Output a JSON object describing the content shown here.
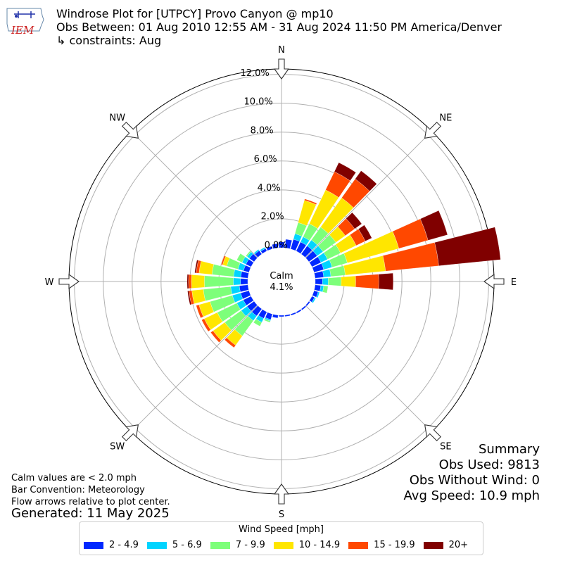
{
  "header": {
    "title": "Windrose Plot for [UTPCY] Provo Canyon @ mp10",
    "subtitle": "Obs Between: 01 Aug 2010 12:55 AM - 31 Aug 2024 11:50 PM America/Denver",
    "constraints": "↳ constraints: Aug",
    "logo_text": "IEM"
  },
  "summary": {
    "heading": "Summary",
    "obs_used": "Obs Used: 9813",
    "obs_without_wind": "Obs Without Wind: 0",
    "avg_speed": "Avg Speed: 10.9 mph"
  },
  "notes": {
    "calm_note": "Calm values are < 2.0 mph",
    "bar_convention": "Bar Convention: Meteorology",
    "flow_arrows": "Flow arrows relative to plot center.",
    "generated": "Generated: 11 May 2025"
  },
  "legend": {
    "title": "Wind Speed [mph]",
    "items": [
      {
        "label": "2 - 4.9",
        "color": "#0028ff"
      },
      {
        "label": "5 - 6.9",
        "color": "#00d4ff"
      },
      {
        "label": "7 - 9.9",
        "color": "#7dff7a"
      },
      {
        "label": "10 - 14.9",
        "color": "#ffe600"
      },
      {
        "label": "15 - 19.9",
        "color": "#ff4800"
      },
      {
        "label": "20+",
        "color": "#800000"
      }
    ]
  },
  "chart_data": {
    "type": "windrose",
    "calm_label": "Calm",
    "calm_value": "4.1%",
    "radial_ticks": [
      "0.0%",
      "2.0%",
      "4.0%",
      "6.0%",
      "8.0%",
      "10.0%",
      "12.0%"
    ],
    "radial_range": [
      0,
      12
    ],
    "direction_labels": [
      "N",
      "NE",
      "E",
      "SE",
      "S",
      "SW",
      "W",
      "NW"
    ],
    "sectors": [
      {
        "dir": 0,
        "values": [
          0.4,
          0.0,
          0.0,
          0.0,
          0.0,
          0.0
        ]
      },
      {
        "dir": 10,
        "values": [
          0.6,
          0.0,
          0.0,
          0.0,
          0.0,
          0.0
        ]
      },
      {
        "dir": 20,
        "values": [
          0.7,
          0.4,
          0.8,
          1.6,
          0.1,
          0.0
        ]
      },
      {
        "dir": 30,
        "values": [
          0.7,
          0.4,
          1.0,
          2.6,
          1.4,
          0.7
        ]
      },
      {
        "dir": 40,
        "values": [
          0.7,
          0.5,
          1.1,
          2.5,
          1.6,
          0.7
        ]
      },
      {
        "dir": 50,
        "values": [
          0.7,
          0.5,
          1.1,
          0.8,
          0.8,
          0.6
        ]
      },
      {
        "dir": 60,
        "values": [
          0.7,
          0.5,
          1.0,
          1.2,
          0.7,
          0.5
        ]
      },
      {
        "dir": 70,
        "values": [
          0.7,
          0.6,
          1.1,
          3.7,
          2.1,
          1.4
        ]
      },
      {
        "dir": 80,
        "values": [
          0.6,
          0.5,
          1.0,
          2.8,
          3.7,
          4.3
        ]
      },
      {
        "dir": 90,
        "values": [
          0.5,
          0.4,
          0.9,
          1.0,
          1.6,
          1.0
        ]
      },
      {
        "dir": 100,
        "values": [
          0.4,
          0.2,
          0.3,
          0.0,
          0.0,
          0.0
        ]
      },
      {
        "dir": 110,
        "values": [
          0.3,
          0.1,
          0.0,
          0.0,
          0.0,
          0.0
        ]
      },
      {
        "dir": 120,
        "values": [
          0.2,
          0.1,
          0.0,
          0.0,
          0.0,
          0.0
        ]
      },
      {
        "dir": 130,
        "values": [
          0.1,
          0.0,
          0.0,
          0.0,
          0.0,
          0.0
        ]
      },
      {
        "dir": 140,
        "values": [
          0.1,
          0.0,
          0.0,
          0.0,
          0.0,
          0.0
        ]
      },
      {
        "dir": 150,
        "values": [
          0.1,
          0.0,
          0.0,
          0.0,
          0.0,
          0.0
        ]
      },
      {
        "dir": 160,
        "values": [
          0.1,
          0.0,
          0.0,
          0.0,
          0.0,
          0.0
        ]
      },
      {
        "dir": 170,
        "values": [
          0.1,
          0.0,
          0.0,
          0.0,
          0.0,
          0.0
        ]
      },
      {
        "dir": 180,
        "values": [
          0.1,
          0.0,
          0.0,
          0.0,
          0.0,
          0.0
        ]
      },
      {
        "dir": 190,
        "values": [
          0.2,
          0.0,
          0.0,
          0.0,
          0.0,
          0.0
        ]
      },
      {
        "dir": 200,
        "values": [
          0.4,
          0.1,
          0.1,
          0.0,
          0.0,
          0.0
        ]
      },
      {
        "dir": 210,
        "values": [
          0.5,
          0.3,
          0.3,
          0.0,
          0.0,
          0.0
        ]
      },
      {
        "dir": 220,
        "values": [
          0.6,
          0.4,
          1.3,
          0.8,
          0.2,
          0.0
        ]
      },
      {
        "dir": 230,
        "values": [
          0.6,
          0.5,
          1.4,
          1.0,
          0.2,
          0.0
        ]
      },
      {
        "dir": 240,
        "values": [
          0.6,
          0.5,
          1.5,
          1.0,
          0.2,
          0.0
        ]
      },
      {
        "dir": 250,
        "values": [
          0.6,
          0.6,
          1.6,
          0.8,
          0.2,
          0.0
        ]
      },
      {
        "dir": 260,
        "values": [
          0.6,
          0.6,
          1.9,
          0.8,
          0.2,
          0.1
        ]
      },
      {
        "dir": 270,
        "values": [
          0.5,
          0.5,
          2.0,
          0.9,
          0.2,
          0.1
        ]
      },
      {
        "dir": 280,
        "values": [
          0.5,
          0.5,
          1.5,
          0.9,
          0.2,
          0.1
        ]
      },
      {
        "dir": 290,
        "values": [
          0.4,
          0.4,
          0.8,
          0.3,
          0.1,
          0.0
        ]
      },
      {
        "dir": 300,
        "values": [
          0.4,
          0.3,
          0.4,
          0.0,
          0.0,
          0.0
        ]
      },
      {
        "dir": 310,
        "values": [
          0.4,
          0.2,
          0.1,
          0.0,
          0.0,
          0.0
        ]
      },
      {
        "dir": 320,
        "values": [
          0.3,
          0.1,
          0.0,
          0.0,
          0.0,
          0.0
        ]
      },
      {
        "dir": 330,
        "values": [
          0.2,
          0.1,
          0.0,
          0.0,
          0.0,
          0.0
        ]
      },
      {
        "dir": 340,
        "values": [
          0.2,
          0.0,
          0.0,
          0.0,
          0.0,
          0.0
        ]
      },
      {
        "dir": 350,
        "values": [
          0.3,
          0.0,
          0.0,
          0.0,
          0.0,
          0.0
        ]
      }
    ]
  }
}
